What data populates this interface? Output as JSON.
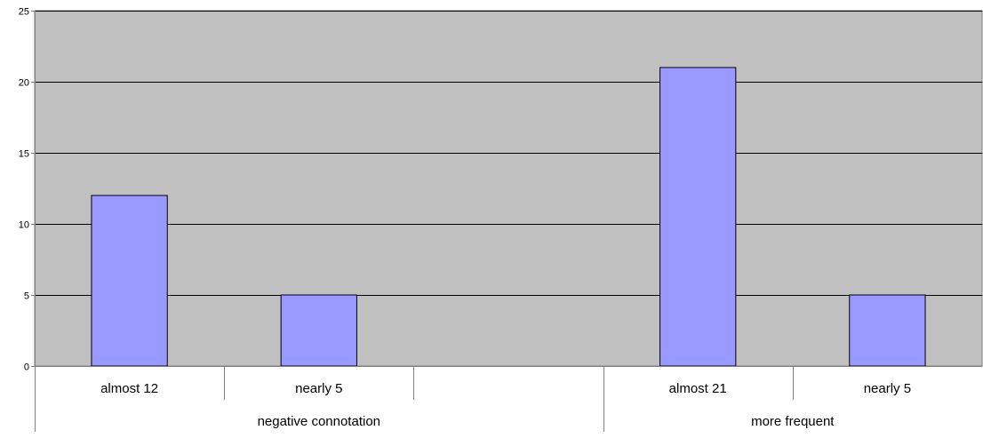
{
  "chart_data": {
    "type": "bar",
    "title": "",
    "xlabel": "",
    "ylabel": "",
    "categories": [
      "almost 12",
      "nearly 5",
      "",
      "almost 21",
      "nearly 5"
    ],
    "groups": [
      {
        "label": "negative connotation",
        "span": 3
      },
      {
        "label": "more frequent",
        "span": 2
      }
    ],
    "values": [
      12,
      5,
      null,
      21,
      5
    ],
    "ylim": [
      0,
      25
    ],
    "yticks": [
      0,
      5,
      10,
      15,
      20,
      25
    ],
    "grid": true,
    "legend": "none",
    "colors": {
      "plot_background": "#c0c0c0",
      "bar_fill": "#9999ff",
      "bar_stroke": "#000000",
      "gridline": "#000000",
      "axis": "#808080",
      "text": "#000000"
    }
  }
}
